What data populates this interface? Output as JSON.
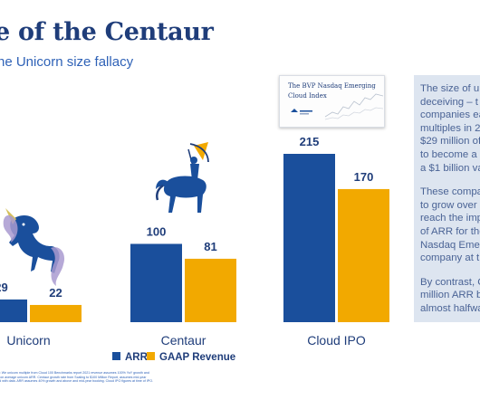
{
  "title": "e of the Centaur",
  "subtitle": "he Unicorn size fallacy",
  "index_card": {
    "title": "The BVP Nasdaq Emerging Cloud Index"
  },
  "callout_paragraphs": [
    "The size of un\ndeceiving – t\ncompanies ea\nmultiples in 2\n$29 million of\nto become a\na $1 billion va",
    "These compa\nto grow over\nreach the imp\nof ARR for the\nNasdaq Emer\ncompany at t",
    "By contrast, C\nmillion ARR b\nalmost halfwa"
  ],
  "footnote": "s: We unicorn multiple from Cloud 100 Benchmarks report 2021 revenue assumes 100% YoY growth and\nr on average unicorn ARR. Centaur growth rate from Scaling to $100 Million Report, assumes mid-year\nrd with data. ARR assumes 40% growth and above and mid-year booking. Cloud IPO figures at time of IPO.",
  "colors": {
    "arr": "#1a4f9c",
    "gaap": "#f2a900",
    "text": "#1f3d7a",
    "accent": "#2f62b7",
    "callout_bg": "#dde5f0"
  },
  "icons": [
    "unicorn-illustration",
    "centaur-illustration",
    "index-chart-thumbnail"
  ],
  "chart_data": {
    "type": "bar",
    "categories": [
      "Unicorn",
      "Centaur",
      "Cloud IPO"
    ],
    "series": [
      {
        "name": "ARR",
        "values": [
          29,
          100,
          215
        ],
        "labels": [
          "29",
          "100",
          "215"
        ]
      },
      {
        "name": "GAAP Revenue",
        "values": [
          22,
          81,
          170
        ],
        "labels": [
          "22",
          "81",
          "170"
        ]
      }
    ],
    "legend_position": "bottom",
    "ylim": [
      0,
      215
    ],
    "grid": false
  }
}
